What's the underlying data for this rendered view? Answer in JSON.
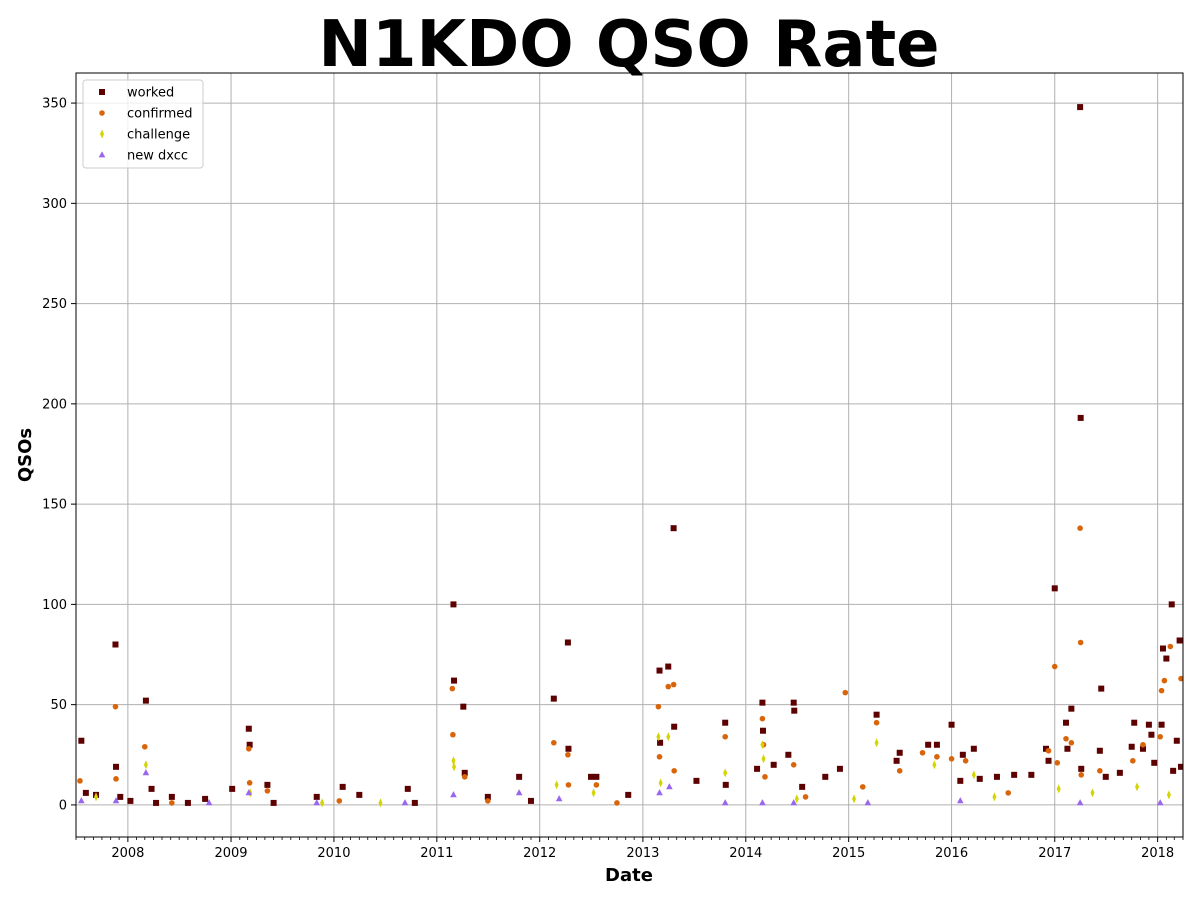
{
  "chart_data": {
    "type": "scatter",
    "title": "N1KDO QSO Rate",
    "xlabel": "Date",
    "ylabel": "QSOs",
    "xlim": [
      "2007-07-01",
      "2018-04-01"
    ],
    "ylim": [
      -16,
      365
    ],
    "x_ticks": [
      "2008",
      "2009",
      "2010",
      "2011",
      "2012",
      "2013",
      "2014",
      "2015",
      "2016",
      "2017",
      "2018"
    ],
    "y_ticks": [
      "0",
      "50",
      "100",
      "150",
      "200",
      "250",
      "300",
      "350"
    ],
    "grid": true,
    "legend_position": "top-left",
    "colors": {
      "worked": "#5c0000",
      "confirmed": "#d9650a",
      "challenge": "#d4d400",
      "new_dxcc": "#9966ee",
      "grid": "#b0b0b0"
    },
    "series": [
      {
        "name": "worked",
        "marker": "square",
        "points": [
          [
            "2007-07-20",
            32
          ],
          [
            "2007-08-05",
            6
          ],
          [
            "2007-09-10",
            5
          ],
          [
            "2007-11-18",
            80
          ],
          [
            "2007-11-20",
            19
          ],
          [
            "2007-12-05",
            4
          ],
          [
            "2008-01-10",
            2
          ],
          [
            "2008-03-05",
            52
          ],
          [
            "2008-03-25",
            8
          ],
          [
            "2008-04-10",
            1
          ],
          [
            "2008-06-05",
            4
          ],
          [
            "2008-08-01",
            1
          ],
          [
            "2008-10-01",
            3
          ],
          [
            "2009-01-05",
            8
          ],
          [
            "2009-03-05",
            38
          ],
          [
            "2009-03-08",
            30
          ],
          [
            "2009-05-10",
            10
          ],
          [
            "2009-06-01",
            1
          ],
          [
            "2009-11-01",
            4
          ],
          [
            "2010-02-01",
            9
          ],
          [
            "2010-04-01",
            5
          ],
          [
            "2010-09-20",
            8
          ],
          [
            "2010-10-15",
            1
          ],
          [
            "2011-03-01",
            100
          ],
          [
            "2011-03-03",
            62
          ],
          [
            "2011-04-05",
            49
          ],
          [
            "2011-04-10",
            16
          ],
          [
            "2011-07-01",
            4
          ],
          [
            "2011-10-20",
            14
          ],
          [
            "2011-12-01",
            2
          ],
          [
            "2012-02-20",
            53
          ],
          [
            "2012-04-10",
            81
          ],
          [
            "2012-04-12",
            28
          ],
          [
            "2012-07-01",
            14
          ],
          [
            "2012-07-20",
            14
          ],
          [
            "2012-11-10",
            5
          ],
          [
            "2013-03-01",
            67
          ],
          [
            "2013-03-03",
            31
          ],
          [
            "2013-04-01",
            69
          ],
          [
            "2013-04-20",
            138
          ],
          [
            "2013-04-22",
            39
          ],
          [
            "2013-07-10",
            12
          ],
          [
            "2013-10-20",
            41
          ],
          [
            "2013-10-22",
            10
          ],
          [
            "2014-02-10",
            18
          ],
          [
            "2014-03-01",
            51
          ],
          [
            "2014-03-03",
            37
          ],
          [
            "2014-04-10",
            20
          ],
          [
            "2014-06-20",
            51
          ],
          [
            "2014-06-22",
            47
          ],
          [
            "2014-06-01",
            25
          ],
          [
            "2014-07-20",
            9
          ],
          [
            "2014-10-10",
            14
          ],
          [
            "2014-12-01",
            18
          ],
          [
            "2015-04-10",
            45
          ],
          [
            "2015-06-20",
            22
          ],
          [
            "2015-07-01",
            26
          ],
          [
            "2015-10-10",
            30
          ],
          [
            "2015-11-10",
            30
          ],
          [
            "2016-01-01",
            40
          ],
          [
            "2016-02-10",
            25
          ],
          [
            "2016-03-20",
            28
          ],
          [
            "2016-02-01",
            12
          ],
          [
            "2016-04-10",
            13
          ],
          [
            "2016-06-10",
            14
          ],
          [
            "2016-08-10",
            15
          ],
          [
            "2016-10-10",
            15
          ],
          [
            "2016-12-01",
            28
          ],
          [
            "2016-12-10",
            22
          ],
          [
            "2017-01-01",
            108
          ],
          [
            "2017-02-10",
            41
          ],
          [
            "2017-02-15",
            28
          ],
          [
            "2017-03-01",
            48
          ],
          [
            "2017-04-01",
            348
          ],
          [
            "2017-04-03",
            193
          ],
          [
            "2017-04-05",
            18
          ],
          [
            "2017-06-10",
            27
          ],
          [
            "2017-06-15",
            58
          ],
          [
            "2017-07-01",
            14
          ],
          [
            "2017-08-20",
            16
          ],
          [
            "2017-10-01",
            29
          ],
          [
            "2017-10-10",
            41
          ],
          [
            "2017-11-10",
            28
          ],
          [
            "2017-12-01",
            40
          ],
          [
            "2017-12-10",
            35
          ],
          [
            "2017-12-20",
            21
          ],
          [
            "2018-01-15",
            40
          ],
          [
            "2018-01-20",
            78
          ],
          [
            "2018-02-01",
            73
          ],
          [
            "2018-02-20",
            100
          ],
          [
            "2018-03-10",
            32
          ],
          [
            "2018-03-20",
            82
          ],
          [
            "2018-03-25",
            19
          ],
          [
            "2018-02-25",
            17
          ]
        ]
      },
      {
        "name": "confirmed",
        "marker": "circle",
        "points": [
          [
            "2007-07-15",
            12
          ],
          [
            "2007-11-18",
            49
          ],
          [
            "2007-11-20",
            13
          ],
          [
            "2008-03-01",
            29
          ],
          [
            "2009-03-05",
            28
          ],
          [
            "2009-03-08",
            11
          ],
          [
            "2009-05-10",
            7
          ],
          [
            "2011-02-25",
            58
          ],
          [
            "2011-02-27",
            35
          ],
          [
            "2011-04-10",
            14
          ],
          [
            "2012-02-20",
            31
          ],
          [
            "2012-04-10",
            25
          ],
          [
            "2012-04-12",
            10
          ],
          [
            "2012-07-20",
            10
          ],
          [
            "2013-02-25",
            49
          ],
          [
            "2013-03-01",
            24
          ],
          [
            "2013-04-01",
            59
          ],
          [
            "2013-04-20",
            60
          ],
          [
            "2013-04-22",
            17
          ],
          [
            "2013-10-20",
            34
          ],
          [
            "2014-03-01",
            43
          ],
          [
            "2014-03-05",
            30
          ],
          [
            "2014-06-20",
            20
          ],
          [
            "2014-12-20",
            56
          ],
          [
            "2015-04-10",
            41
          ],
          [
            "2015-07-01",
            17
          ],
          [
            "2015-09-20",
            26
          ],
          [
            "2015-11-10",
            24
          ],
          [
            "2016-01-01",
            23
          ],
          [
            "2016-02-20",
            22
          ],
          [
            "2016-12-10",
            27
          ],
          [
            "2017-01-01",
            69
          ],
          [
            "2017-01-10",
            21
          ],
          [
            "2017-02-10",
            33
          ],
          [
            "2017-03-01",
            31
          ],
          [
            "2017-04-01",
            138
          ],
          [
            "2017-04-03",
            81
          ],
          [
            "2017-04-05",
            15
          ],
          [
            "2017-06-10",
            17
          ],
          [
            "2017-10-05",
            22
          ],
          [
            "2017-11-10",
            30
          ],
          [
            "2018-01-15",
            57
          ],
          [
            "2018-01-25",
            62
          ],
          [
            "2018-02-15",
            79
          ],
          [
            "2018-03-25",
            63
          ],
          [
            "2018-01-10",
            34
          ],
          [
            "2014-03-10",
            14
          ],
          [
            "2014-08-01",
            4
          ],
          [
            "2015-02-20",
            9
          ],
          [
            "2016-07-20",
            6
          ],
          [
            "2011-07-01",
            2
          ],
          [
            "2010-01-20",
            2
          ],
          [
            "2012-10-01",
            1
          ],
          [
            "2008-06-05",
            1
          ]
        ]
      },
      {
        "name": "challenge",
        "marker": "thin_diamond",
        "points": [
          [
            "2007-09-10",
            4
          ],
          [
            "2008-03-05",
            20
          ],
          [
            "2009-03-10",
            6
          ],
          [
            "2011-03-01",
            22
          ],
          [
            "2011-03-03",
            19
          ],
          [
            "2012-03-01",
            10
          ],
          [
            "2012-07-10",
            6
          ],
          [
            "2013-02-25",
            34
          ],
          [
            "2013-04-01",
            34
          ],
          [
            "2013-03-05",
            11
          ],
          [
            "2013-10-20",
            16
          ],
          [
            "2014-03-01",
            30
          ],
          [
            "2014-03-05",
            23
          ],
          [
            "2015-04-10",
            31
          ],
          [
            "2015-11-01",
            20
          ],
          [
            "2016-03-20",
            15
          ],
          [
            "2017-01-15",
            8
          ],
          [
            "2017-05-15",
            6
          ],
          [
            "2017-10-20",
            9
          ],
          [
            "2018-02-10",
            5
          ],
          [
            "2014-07-01",
            3
          ],
          [
            "2015-01-20",
            3
          ],
          [
            "2016-06-01",
            4
          ],
          [
            "2010-06-15",
            1
          ],
          [
            "2009-11-20",
            1
          ]
        ]
      },
      {
        "name": "new dxcc",
        "marker": "triangle",
        "points": [
          [
            "2007-07-20",
            2
          ],
          [
            "2007-11-20",
            2
          ],
          [
            "2008-03-05",
            16
          ],
          [
            "2008-10-15",
            1
          ],
          [
            "2009-03-05",
            6
          ],
          [
            "2009-11-01",
            1
          ],
          [
            "2010-09-10",
            1
          ],
          [
            "2011-03-01",
            5
          ],
          [
            "2011-10-20",
            6
          ],
          [
            "2012-03-10",
            3
          ],
          [
            "2013-03-01",
            6
          ],
          [
            "2013-04-05",
            9
          ],
          [
            "2013-10-20",
            1
          ],
          [
            "2014-03-01",
            1
          ],
          [
            "2014-06-20",
            1
          ],
          [
            "2015-03-10",
            1
          ],
          [
            "2016-02-01",
            2
          ],
          [
            "2017-04-01",
            1
          ],
          [
            "2018-01-10",
            1
          ]
        ]
      }
    ]
  }
}
